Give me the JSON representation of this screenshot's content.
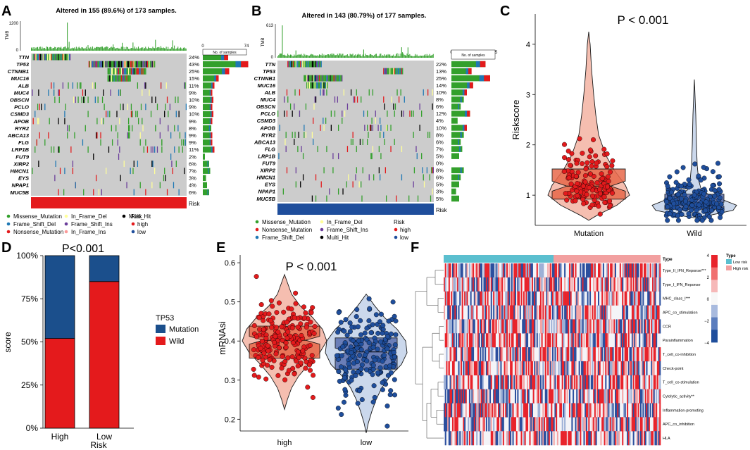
{
  "colors": {
    "missense": "#33A02C",
    "frame_shift_del": "#1F78B4",
    "nonsense": "#E31A1C",
    "in_frame_del": "#FFFF99",
    "frame_shift_ins": "#6A3D9A",
    "in_frame_ins": "#FB9A99",
    "multi_hit": "#000000",
    "none": "#CCCCCC",
    "high": "#E41A1C",
    "low": "#1F4E9C",
    "blue_dark": "#1B4F8C"
  },
  "chart_data": [
    {
      "panel": "A",
      "type": "table",
      "title": "Altered in 155 (89.6%) of 173 samples.",
      "tmb_label": "TMB",
      "tmb_max": "1200",
      "tmb_zero": "0",
      "bar_axis_min": "0",
      "bar_axis_max": "74",
      "bar_axis_label": "No. of samples",
      "genes": [
        "TTN",
        "TP53",
        "CTNNB1",
        "MUC16",
        "ALB",
        "MUC4",
        "OBSCN",
        "PCLO",
        "CSMD3",
        "APOB",
        "RYR2",
        "ABCA13",
        "FLG",
        "LRP1B",
        "FUT9",
        "XIRP2",
        "HMCN1",
        "EYS",
        "NPAP1",
        "MUC5B"
      ],
      "percents": [
        "24%",
        "43%",
        "25%",
        "15%",
        "11%",
        "9%",
        "10%",
        "9%",
        "10%",
        "9%",
        "8%",
        "9%",
        "9%",
        "11%",
        "2%",
        "6%",
        "7%",
        "3%",
        "4%",
        "6%"
      ],
      "risk_label": "Risk",
      "legend_mut": [
        "Missense_Mutation",
        "Frame_Shift_Del",
        "Nonsense_Mutation",
        "In_Frame_Del",
        "Frame_Shift_Ins",
        "In_Frame_Ins",
        "Multi_Hit"
      ],
      "legend_risk_title": "Risk",
      "legend_risk": [
        "high",
        "low"
      ]
    },
    {
      "panel": "B",
      "type": "table",
      "title": "Altered in 143 (80.79%) of 177 samples.",
      "tmb_label": "TMB",
      "tmb_max": "613",
      "tmb_zero": "0",
      "bar_axis_min": "0",
      "bar_axis_max": "45",
      "bar_axis_label": "No. of samples",
      "genes": [
        "TTN",
        "TP53",
        "CTNNB1",
        "MUC16",
        "ALB",
        "MUC4",
        "OBSCN",
        "PCLO",
        "CSMD3",
        "APOB",
        "RYR2",
        "ABCA13",
        "FLG",
        "LRP1B",
        "FUT9",
        "XIRP2",
        "HMCN1",
        "EYS",
        "NPAP1",
        "MUC5B"
      ],
      "percents": [
        "22%",
        "13%",
        "25%",
        "14%",
        "10%",
        "8%",
        "6%",
        "12%",
        "4%",
        "10%",
        "8%",
        "6%",
        "7%",
        "5%",
        "0%",
        "8%",
        "6%",
        "5%",
        "3%",
        "5%"
      ],
      "risk_label": "Risk",
      "legend_mut": [
        "Missense_Mutation",
        "Nonsense_Mutation",
        "Frame_Shift_Del",
        "In_Frame_Del",
        "Frame_Shift_Ins",
        "Multi_Hit"
      ],
      "legend_risk_title": "Risk",
      "legend_risk": [
        "high",
        "low"
      ]
    },
    {
      "panel": "C",
      "type": "scatter",
      "title": "P < 0.001",
      "ylabel": "Riskscore",
      "categories": [
        "Mutation",
        "Wild"
      ],
      "ylim": [
        0.4,
        4.6
      ],
      "yticks": [
        "1",
        "2",
        "3",
        "4"
      ],
      "box": [
        {
          "q1": 0.92,
          "median": 1.18,
          "q3": 1.52,
          "notch_lo": 1.08,
          "notch_hi": 1.28
        },
        {
          "q1": 0.72,
          "median": 0.82,
          "q3": 1.02,
          "notch_lo": 0.78,
          "notch_hi": 0.86
        }
      ]
    },
    {
      "panel": "D",
      "type": "bar",
      "title": "P<0.001",
      "xlabel": "Risk",
      "ylabel": "score",
      "categories": [
        "High",
        "Low"
      ],
      "series": [
        {
          "name": "Wild",
          "values": [
            52,
            85
          ]
        },
        {
          "name": "Mutation",
          "values": [
            48,
            15
          ]
        }
      ],
      "yticks": [
        "0%",
        "25%",
        "50%",
        "75%",
        "100%"
      ],
      "legend_title": "TP53",
      "legend": [
        "Mutation",
        "Wild"
      ]
    },
    {
      "panel": "E",
      "type": "scatter",
      "title": "P < 0.001",
      "ylabel": "mRNAsi",
      "categories": [
        "high",
        "low"
      ],
      "ylim": [
        0.17,
        0.62
      ],
      "yticks": [
        "0.2",
        "0.3",
        "0.4",
        "0.5",
        "0.6"
      ],
      "box": [
        {
          "q1": 0.356,
          "median": 0.402,
          "q3": 0.438,
          "notch_lo": 0.392,
          "notch_hi": 0.412
        },
        {
          "q1": 0.328,
          "median": 0.372,
          "q3": 0.408,
          "notch_lo": 0.362,
          "notch_hi": 0.382
        }
      ]
    },
    {
      "panel": "F",
      "type": "heatmap",
      "annotation": "Type",
      "rows": [
        "Type_II_IFN_Reponse***",
        "Type_I_IFN_Reponse",
        "MHC_class_I***",
        "APC_co_stimulation",
        "CCR",
        "Parainflammation",
        "T_cell_co-inhibition",
        "Check-point",
        "T_cell_co-stimulation",
        "Cytolytic_activity**",
        "Inflammation-promoting",
        "APC_co_inhibition",
        "HLA"
      ],
      "scale_ticks": [
        "4",
        "2",
        "0",
        "−2",
        "−4"
      ],
      "legend_title": "Type",
      "legend": [
        "Low risk",
        "High risk"
      ]
    }
  ]
}
